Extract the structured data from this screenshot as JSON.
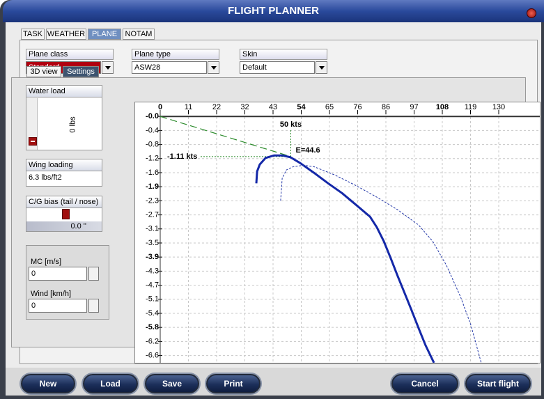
{
  "window": {
    "title": "FLIGHT PLANNER"
  },
  "tabs": [
    "TASK",
    "WEATHER",
    "PLANE",
    "NOTAM"
  ],
  "active_tab": 2,
  "selectors": [
    {
      "label": "Plane class",
      "value": "Standard",
      "highlight": true
    },
    {
      "label": "Plane type",
      "value": "ASW28",
      "highlight": false
    },
    {
      "label": "Skin",
      "value": "Default",
      "highlight": false
    }
  ],
  "subtabs": [
    "3D view",
    "Settings"
  ],
  "active_subtab": 1,
  "water_load": {
    "label": "Water load",
    "value": "0 lbs"
  },
  "wing_loading": {
    "label": "Wing loading",
    "value": "6.3 lbs/ft2"
  },
  "cg_bias": {
    "label": "C/G bias (tail / nose)",
    "value": "0.0 ''"
  },
  "mc": {
    "label": "MC [m/s]",
    "value": "0"
  },
  "wind": {
    "label": "Wind [km/h]",
    "value": "0"
  },
  "buttons": [
    "New",
    "Load",
    "Save",
    "Print",
    "Cancel",
    "Start flight"
  ],
  "chart_data": {
    "type": "line",
    "xlim": [
      0,
      144
    ],
    "ylim": [
      -6.83,
      0.1
    ],
    "xticks": [
      0,
      {
        "value": 10.8,
        "label": "11"
      },
      {
        "value": 21.6,
        "label": "22"
      },
      {
        "value": 32.4,
        "label": "32"
      },
      {
        "value": 43.2,
        "label": "43"
      },
      54,
      {
        "value": 64.8,
        "label": "65"
      },
      {
        "value": 75.6,
        "label": "76"
      },
      {
        "value": 86.4,
        "label": "86"
      },
      {
        "value": 97.2,
        "label": "97"
      },
      108,
      {
        "value": 118.8,
        "label": "119"
      },
      {
        "value": 129.6,
        "label": "130"
      }
    ],
    "yticks": [
      {
        "value": 0,
        "label": "-0.0"
      },
      {
        "value": -0.389,
        "label": "-0.4"
      },
      {
        "value": -0.778,
        "label": "-0.8"
      },
      {
        "value": -1.166,
        "label": "-1.2"
      },
      {
        "value": -1.555,
        "label": "-1.6"
      },
      {
        "value": -1.944,
        "label": "-1.9"
      },
      {
        "value": -2.333,
        "label": "-2.3"
      },
      {
        "value": -2.722,
        "label": "-2.7"
      },
      {
        "value": -3.11,
        "label": "-3.1"
      },
      {
        "value": -3.499,
        "label": "-3.5"
      },
      {
        "value": -3.888,
        "label": "-3.9"
      },
      {
        "value": -4.277,
        "label": "-4.3"
      },
      {
        "value": -4.666,
        "label": "-4.7"
      },
      {
        "value": -5.054,
        "label": "-5.1"
      },
      {
        "value": -5.443,
        "label": "-5.4"
      },
      {
        "value": -5.832,
        "label": "-5.8"
      },
      {
        "value": -6.221,
        "label": "-6.2"
      },
      {
        "value": -6.61,
        "label": "-6.6"
      }
    ],
    "grid": true,
    "series": [
      {
        "color": "#1428a8",
        "line_style": "solid",
        "x": [
          36.8,
          37.1,
          38.1,
          40.3,
          43.5,
          46.9,
          49.9,
          53.6,
          58.9,
          64.3,
          69.6,
          74.9,
          80.3,
          82.9,
          85.6,
          88.3,
          90.9,
          93.6,
          96.3,
          98.9,
          101.6,
          104.8
        ],
        "values": [
          -1.85,
          -1.52,
          -1.33,
          -1.15,
          -1.08,
          -1.08,
          -1.13,
          -1.29,
          -1.56,
          -1.85,
          -2.12,
          -2.44,
          -2.77,
          -3.06,
          -3.45,
          -3.93,
          -4.41,
          -4.89,
          -5.37,
          -5.85,
          -6.33,
          -6.81
        ]
      },
      {
        "color": "#2438a8",
        "line_style": "dotted",
        "x": [
          46.1,
          46.7,
          48.3,
          50.9,
          54.9,
          58.9,
          66.9,
          74.9,
          82.9,
          90.9,
          98.9,
          104.3,
          109.6,
          115,
          118.9,
          122.9
        ],
        "values": [
          -2.33,
          -1.71,
          -1.48,
          -1.39,
          -1.35,
          -1.39,
          -1.62,
          -1.91,
          -2.23,
          -2.58,
          -3.0,
          -3.45,
          -4.12,
          -4.99,
          -5.76,
          -6.81
        ]
      }
    ],
    "tangent": {
      "x": 50,
      "x_label": "50 kts",
      "y": -1.11,
      "y_label": "-1.11 kts",
      "color": "#2a8a2a"
    },
    "annotation": "E=44.6"
  }
}
